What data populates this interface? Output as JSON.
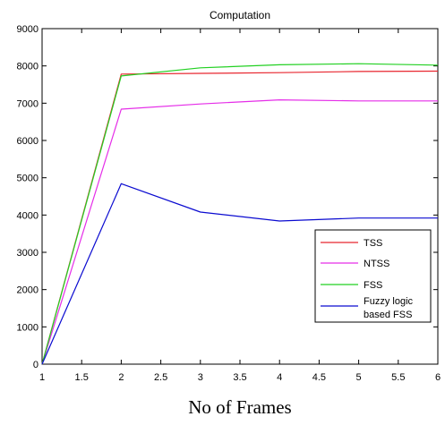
{
  "chart_data": {
    "type": "line",
    "title": "Computation",
    "xlabel": "No of Frames",
    "ylabel": "",
    "xlim": [
      1,
      6
    ],
    "ylim": [
      0,
      9000
    ],
    "x_ticks": [
      "1",
      "1.5",
      "2",
      "2.5",
      "3",
      "3.5",
      "4",
      "4.5",
      "5",
      "5.5",
      "6"
    ],
    "y_ticks": [
      "0",
      "1000",
      "2000",
      "3000",
      "4000",
      "5000",
      "6000",
      "7000",
      "8000",
      "9000"
    ],
    "x": [
      1,
      2,
      3,
      4,
      5,
      6
    ],
    "grid": false,
    "legend_position": "lower-right",
    "series": [
      {
        "name": "TSS",
        "color": "#e8262f",
        "values": [
          0,
          7780,
          7800,
          7820,
          7850,
          7860
        ]
      },
      {
        "name": "NTSS",
        "color": "#e52de8",
        "values": [
          0,
          6840,
          6980,
          7090,
          7060,
          7060
        ]
      },
      {
        "name": "FSS",
        "color": "#22d022",
        "values": [
          0,
          7730,
          7950,
          8030,
          8060,
          8020
        ]
      },
      {
        "name": "Fuzzy logic\nbased FSS",
        "color": "#0a0ad0",
        "values": [
          0,
          4840,
          4080,
          3840,
          3920,
          3920
        ]
      }
    ]
  }
}
